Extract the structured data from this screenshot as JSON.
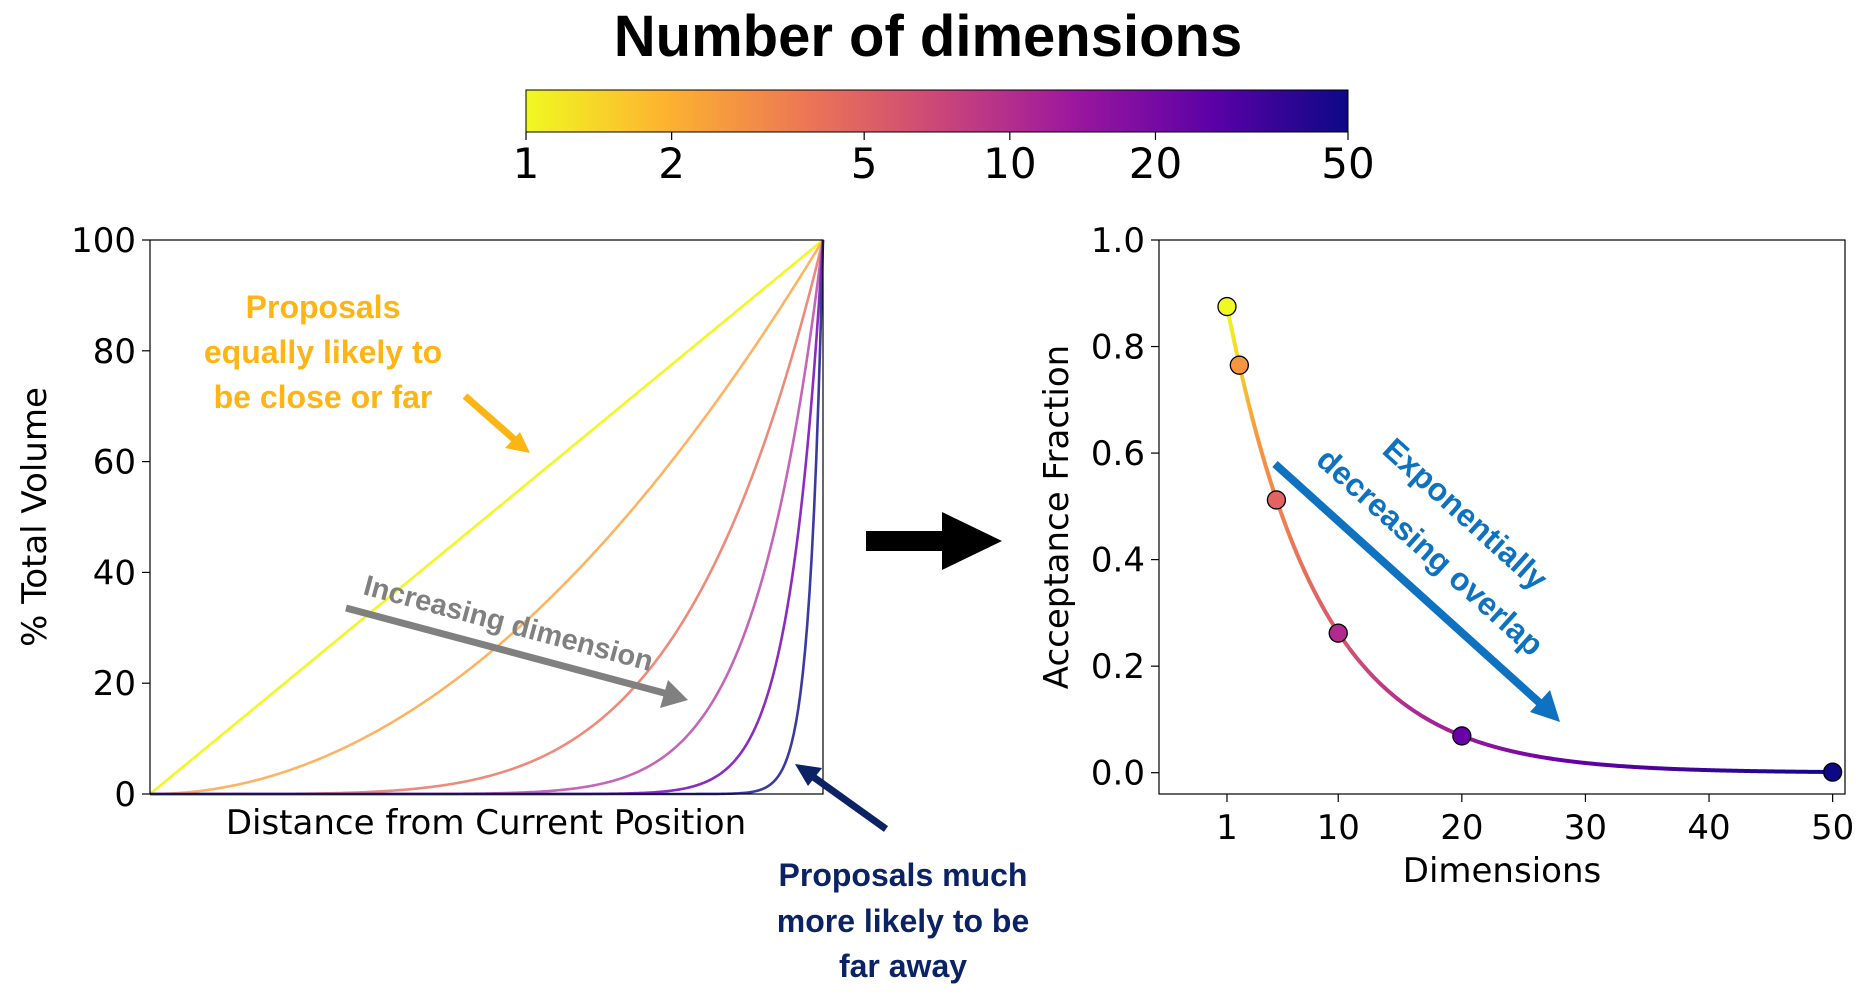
{
  "colorbar": {
    "title": "Number of dimensions",
    "ticks": [
      "1",
      "2",
      "5",
      "10",
      "20",
      "50"
    ],
    "tick_values": [
      1,
      2,
      5,
      10,
      20,
      50
    ],
    "scale": "log",
    "colormap": "plasma",
    "stops": [
      "#f0f921",
      "#fdb42f",
      "#ed7953",
      "#cc4778",
      "#9c179e",
      "#5c01a6",
      "#0d0887"
    ]
  },
  "annotations": {
    "left_top": [
      "Proposals",
      "equally likely to",
      "be close or far"
    ],
    "left_top_color": "#FDB515",
    "increasing": "Increasing dimension",
    "increasing_color": "#808080",
    "bottom": [
      "Proposals much",
      "more likely to be",
      "far away"
    ],
    "bottom_color": "#0B2265",
    "right": [
      "Exponentially",
      "decreasing overlap"
    ],
    "right_color": "#0E72C0"
  },
  "chart_data": [
    {
      "type": "line",
      "xlabel": "Distance from Current Position",
      "ylabel": "% Total Volume",
      "ylim": [
        0,
        100
      ],
      "xlim": [
        0,
        1
      ],
      "yticks": [
        0,
        20,
        40,
        60,
        80,
        100
      ],
      "xticks": [],
      "function": "y = 100 * x^d",
      "series": [
        {
          "dims": 1,
          "color": "#f0f921"
        },
        {
          "dims": 2,
          "color": "#fdb462"
        },
        {
          "dims": 5,
          "color": "#ed8a7a"
        },
        {
          "dims": 10,
          "color": "#c565b8"
        },
        {
          "dims": 20,
          "color": "#8a2cbf"
        },
        {
          "dims": 50,
          "color": "#3a3a9f"
        }
      ]
    },
    {
      "type": "scatter",
      "xlabel": "Dimensions",
      "ylabel": "Acceptance Fraction",
      "xlim": [
        -4.5,
        51
      ],
      "ylim": [
        -0.04,
        1.0
      ],
      "xticks": [
        1,
        10,
        20,
        30,
        40,
        50
      ],
      "yticks": [
        0.0,
        0.2,
        0.4,
        0.6,
        0.8,
        1.0
      ],
      "ytick_labels": [
        "0.0",
        "0.2",
        "0.4",
        "0.6",
        "0.8",
        "1.0"
      ],
      "points": [
        {
          "x": 1,
          "y": 0.875,
          "color": "#f0f921"
        },
        {
          "x": 2,
          "y": 0.765,
          "color": "#f89540"
        },
        {
          "x": 5,
          "y": 0.512,
          "color": "#e16462"
        },
        {
          "x": 10,
          "y": 0.262,
          "color": "#b12a90"
        },
        {
          "x": 20,
          "y": 0.069,
          "color": "#6a00a8"
        },
        {
          "x": 50,
          "y": 0.001,
          "color": "#0d0887"
        }
      ],
      "curve": "y = 0.875^x"
    }
  ]
}
